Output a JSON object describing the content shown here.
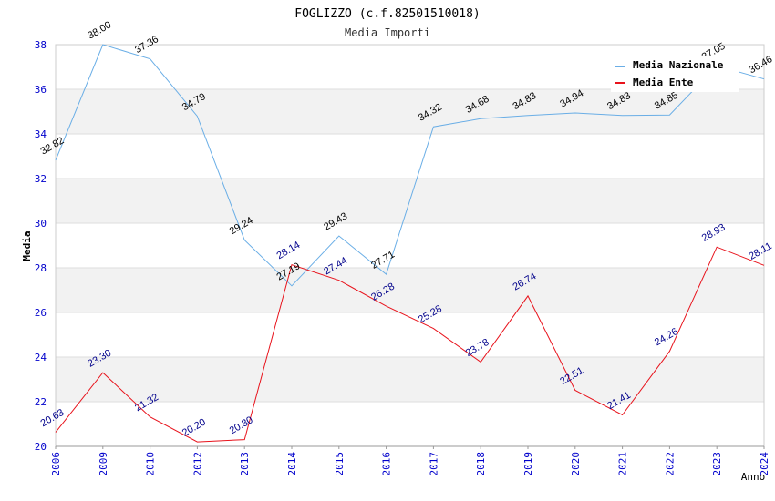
{
  "chart_data": {
    "type": "line",
    "title": "FOGLIZZO (c.f.82501510018)",
    "subtitle": "Media Importi",
    "xlabel": "Anno",
    "ylabel": "Media",
    "categories": [
      "2006",
      "2009",
      "2010",
      "2012",
      "2013",
      "2014",
      "2015",
      "2016",
      "2017",
      "2018",
      "2019",
      "2020",
      "2021",
      "2022",
      "2023",
      "2024"
    ],
    "ylim": [
      20,
      38
    ],
    "yticks": [
      "20",
      "22",
      "24",
      "26",
      "28",
      "30",
      "32",
      "34",
      "36",
      "38"
    ],
    "grid": true,
    "legend_position": "top-right",
    "series": [
      {
        "name": "Media Nazionale",
        "color": "#6aaee6",
        "label_color": "#000000",
        "values": [
          32.82,
          38.0,
          37.36,
          34.79,
          29.24,
          27.19,
          29.43,
          27.71,
          34.32,
          34.68,
          34.83,
          34.94,
          34.83,
          34.85,
          37.05,
          36.46
        ],
        "labels": [
          "32.82",
          "38.00",
          "37.36",
          "34.79",
          "29.24",
          "27.19",
          "29.43",
          "27.71",
          "34.32",
          "34.68",
          "34.83",
          "34.94",
          "34.83",
          "34.85",
          "37.05",
          "36.46"
        ]
      },
      {
        "name": "Media Ente",
        "color": "#e8131c",
        "label_color": "#00008b",
        "values": [
          20.63,
          23.3,
          21.32,
          20.2,
          20.3,
          28.14,
          27.44,
          26.28,
          25.28,
          23.78,
          26.74,
          22.51,
          21.41,
          24.26,
          28.93,
          28.11
        ],
        "labels": [
          "20.63",
          "23.30",
          "21.32",
          "20.20",
          "20.30",
          "28.14",
          "27.44",
          "26.28",
          "25.28",
          "23.78",
          "26.74",
          "22.51",
          "21.41",
          "24.26",
          "28.93",
          "28.11"
        ]
      }
    ]
  }
}
